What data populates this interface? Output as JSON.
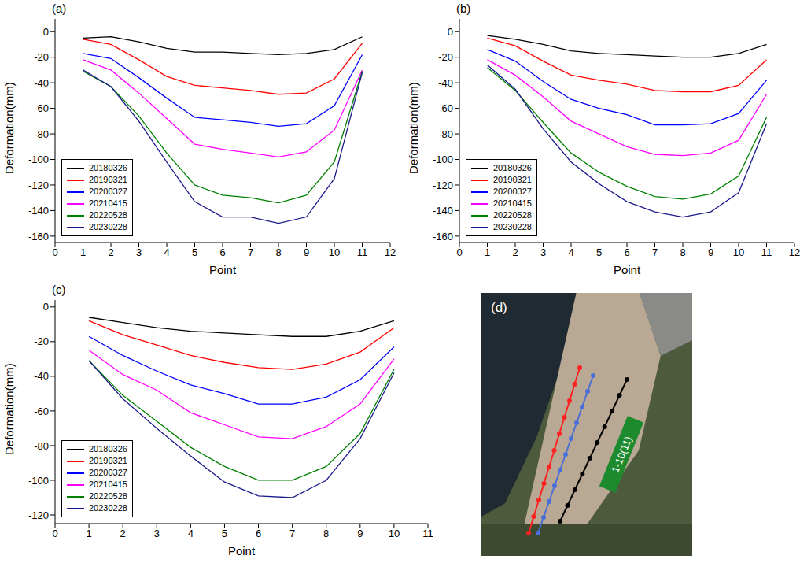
{
  "chart_data": [
    {
      "type": "line",
      "title": "(a)",
      "x_label": "Point",
      "y_label": "Deformation(mm)",
      "x": [
        1,
        2,
        3,
        4,
        5,
        6,
        7,
        8,
        9,
        10,
        11
      ],
      "xlim": [
        0,
        12
      ],
      "xticks": [
        0,
        1,
        2,
        3,
        4,
        5,
        6,
        7,
        8,
        9,
        10,
        11,
        12
      ],
      "ylim": [
        -165,
        10
      ],
      "yticks": [
        -160,
        -140,
        -120,
        -100,
        -80,
        -60,
        -40,
        -20,
        0
      ],
      "legend": "lower left",
      "series": [
        {
          "name": "20180326",
          "color": "#000000",
          "values": [
            -5,
            -4,
            -8,
            -13,
            -16,
            -16,
            -17,
            -18,
            -17,
            -14,
            -4
          ]
        },
        {
          "name": "20190321",
          "color": "#ff0000",
          "values": [
            -6,
            -10,
            -22,
            -35,
            -42,
            -44,
            -46,
            -49,
            -48,
            -37,
            -9
          ]
        },
        {
          "name": "20200327",
          "color": "#0000ff",
          "values": [
            -17,
            -21,
            -36,
            -52,
            -67,
            -69,
            -71,
            -74,
            -72,
            -58,
            -18
          ]
        },
        {
          "name": "20210415",
          "color": "#ff00ff",
          "values": [
            -22,
            -30,
            -48,
            -68,
            -88,
            -92,
            -95,
            -98,
            -94,
            -77,
            -30
          ]
        },
        {
          "name": "20220528",
          "color": "#008000",
          "values": [
            -31,
            -43,
            -66,
            -95,
            -120,
            -128,
            -130,
            -134,
            -128,
            -102,
            -31
          ]
        },
        {
          "name": "20230228",
          "color": "#1a1a8c",
          "values": [
            -30,
            -43,
            -70,
            -102,
            -133,
            -145,
            -145,
            -150,
            -145,
            -115,
            -32
          ]
        }
      ]
    },
    {
      "type": "line",
      "title": "(b)",
      "x_label": "Point",
      "y_label": "Deformation(mm)",
      "x": [
        1,
        2,
        3,
        4,
        5,
        6,
        7,
        8,
        9,
        10,
        11
      ],
      "xlim": [
        0,
        12
      ],
      "xticks": [
        0,
        1,
        2,
        3,
        4,
        5,
        6,
        7,
        8,
        9,
        10,
        11,
        12
      ],
      "ylim": [
        -165,
        10
      ],
      "yticks": [
        -160,
        -140,
        -120,
        -100,
        -80,
        -60,
        -40,
        -20,
        0
      ],
      "legend": "lower left",
      "series": [
        {
          "name": "20180326",
          "color": "#000000",
          "values": [
            -3,
            -6,
            -10,
            -15,
            -17,
            -18,
            -19,
            -20,
            -20,
            -17,
            -10
          ]
        },
        {
          "name": "20190321",
          "color": "#ff0000",
          "values": [
            -5,
            -11,
            -23,
            -34,
            -38,
            -41,
            -46,
            -47,
            -47,
            -42,
            -22
          ]
        },
        {
          "name": "20200327",
          "color": "#0000ff",
          "values": [
            -14,
            -23,
            -39,
            -53,
            -60,
            -65,
            -73,
            -73,
            -72,
            -64,
            -38
          ]
        },
        {
          "name": "20210415",
          "color": "#ff00ff",
          "values": [
            -22,
            -34,
            -51,
            -70,
            -80,
            -90,
            -96,
            -97,
            -95,
            -85,
            -49
          ]
        },
        {
          "name": "20220528",
          "color": "#008000",
          "values": [
            -28,
            -46,
            -71,
            -95,
            -110,
            -121,
            -129,
            -131,
            -127,
            -113,
            -67
          ]
        },
        {
          "name": "20230228",
          "color": "#1a1a8c",
          "values": [
            -26,
            -45,
            -76,
            -102,
            -119,
            -133,
            -141,
            -145,
            -141,
            -126,
            -72
          ]
        }
      ]
    },
    {
      "type": "line",
      "title": "(c)",
      "x_label": "Point",
      "y_label": "Deformation(mm)",
      "x": [
        1,
        2,
        3,
        4,
        5,
        6,
        7,
        8,
        9,
        10
      ],
      "xlim": [
        0,
        11
      ],
      "xticks": [
        0,
        1,
        2,
        3,
        4,
        5,
        6,
        7,
        8,
        9,
        10,
        11
      ],
      "ylim": [
        -125,
        4
      ],
      "yticks": [
        -120,
        -100,
        -80,
        -60,
        -40,
        -20,
        0
      ],
      "legend": "lower left",
      "series": [
        {
          "name": "20180326",
          "color": "#000000",
          "values": [
            -6,
            -9,
            -12,
            -14,
            -15,
            -16,
            -17,
            -17,
            -14,
            -8
          ]
        },
        {
          "name": "20190321",
          "color": "#ff0000",
          "values": [
            -8,
            -16,
            -22,
            -28,
            -32,
            -35,
            -36,
            -33,
            -26,
            -12
          ]
        },
        {
          "name": "20200327",
          "color": "#0000ff",
          "values": [
            -17,
            -28,
            -37,
            -45,
            -50,
            -56,
            -56,
            -52,
            -42,
            -23
          ]
        },
        {
          "name": "20210415",
          "color": "#ff00ff",
          "values": [
            -25,
            -39,
            -48,
            -61,
            -68,
            -75,
            -76,
            -69,
            -56,
            -30
          ]
        },
        {
          "name": "20220528",
          "color": "#008000",
          "values": [
            -31,
            -51,
            -66,
            -81,
            -92,
            -100,
            -100,
            -92,
            -73,
            -36
          ]
        },
        {
          "name": "20230228",
          "color": "#1a1a8c",
          "values": [
            -31,
            -53,
            -70,
            -86,
            -101,
            -109,
            -110,
            -100,
            -76,
            -38
          ]
        }
      ]
    }
  ],
  "image": {
    "label": "(d)",
    "annotation": "1-10(11)"
  }
}
